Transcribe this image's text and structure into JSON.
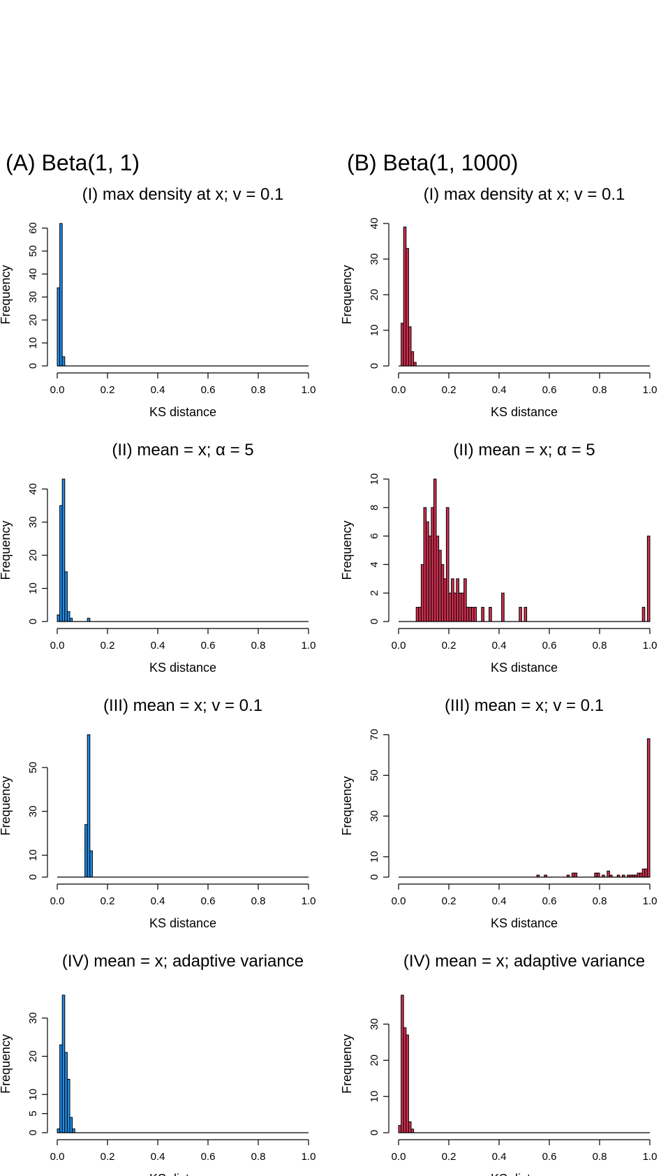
{
  "columns": [
    {
      "id": "A",
      "title": "(A) Beta(1, 1)"
    },
    {
      "id": "B",
      "title": "(B) Beta(1, 1000)"
    }
  ],
  "colors": {
    "A": "#1f8ce6",
    "B": "#d03050",
    "edge": "#000000"
  },
  "chart_data": [
    {
      "column": "A",
      "type": "bar",
      "title": "(I) max density at x; v = 0.1",
      "xlabel": "KS distance",
      "ylabel": "Frequency",
      "xlim": [
        0,
        1
      ],
      "ylim": [
        0,
        62
      ],
      "bin_width": 0.01,
      "x_ticks": [
        "0.0",
        "0.2",
        "0.4",
        "0.6",
        "0.8",
        "1.0"
      ],
      "y_ticks": [
        0,
        10,
        20,
        30,
        40,
        50,
        60
      ],
      "bins": [
        [
          0.0,
          34
        ],
        [
          0.01,
          62
        ],
        [
          0.02,
          4
        ]
      ]
    },
    {
      "column": "B",
      "type": "bar",
      "title": "(I) max density at x; v = 0.1",
      "xlabel": "KS distance",
      "ylabel": "Frequency",
      "xlim": [
        0,
        1
      ],
      "ylim": [
        0,
        40
      ],
      "bin_width": 0.01,
      "x_ticks": [
        "0.0",
        "0.2",
        "0.4",
        "0.6",
        "0.8",
        "1.0"
      ],
      "y_ticks": [
        0,
        10,
        20,
        30,
        40
      ],
      "bins": [
        [
          0.01,
          12
        ],
        [
          0.02,
          39
        ],
        [
          0.03,
          33
        ],
        [
          0.04,
          11
        ],
        [
          0.05,
          4
        ],
        [
          0.06,
          1
        ]
      ]
    },
    {
      "column": "A",
      "type": "bar",
      "title": "(II) mean = x; α = 5",
      "xlabel": "KS distance",
      "ylabel": "Frequency",
      "xlim": [
        0,
        1
      ],
      "ylim": [
        0,
        43
      ],
      "bin_width": 0.01,
      "x_ticks": [
        "0.0",
        "0.2",
        "0.4",
        "0.6",
        "0.8",
        "1.0"
      ],
      "y_ticks": [
        0,
        10,
        20,
        30,
        40
      ],
      "bins": [
        [
          0.0,
          2
        ],
        [
          0.01,
          35
        ],
        [
          0.02,
          43
        ],
        [
          0.03,
          15
        ],
        [
          0.04,
          3
        ],
        [
          0.05,
          1
        ],
        [
          0.12,
          1
        ]
      ]
    },
    {
      "column": "B",
      "type": "bar",
      "title": "(II) mean = x; α = 5",
      "xlabel": "KS distance",
      "ylabel": "Frequency",
      "xlim": [
        0,
        1
      ],
      "ylim": [
        0,
        10
      ],
      "bin_width": 0.01,
      "x_ticks": [
        "0.0",
        "0.2",
        "0.4",
        "0.6",
        "0.8",
        "1.0"
      ],
      "y_ticks": [
        0,
        2,
        4,
        6,
        8,
        10
      ],
      "bins": [
        [
          0.07,
          1
        ],
        [
          0.08,
          1
        ],
        [
          0.09,
          4
        ],
        [
          0.1,
          8
        ],
        [
          0.11,
          7
        ],
        [
          0.12,
          6
        ],
        [
          0.13,
          8
        ],
        [
          0.14,
          10
        ],
        [
          0.15,
          6
        ],
        [
          0.16,
          5
        ],
        [
          0.17,
          4
        ],
        [
          0.18,
          3
        ],
        [
          0.19,
          8
        ],
        [
          0.2,
          2
        ],
        [
          0.21,
          3
        ],
        [
          0.22,
          2
        ],
        [
          0.23,
          3
        ],
        [
          0.24,
          2
        ],
        [
          0.25,
          2
        ],
        [
          0.26,
          3
        ],
        [
          0.27,
          1
        ],
        [
          0.28,
          1
        ],
        [
          0.29,
          1
        ],
        [
          0.3,
          1
        ],
        [
          0.33,
          1
        ],
        [
          0.36,
          1
        ],
        [
          0.41,
          2
        ],
        [
          0.48,
          1
        ],
        [
          0.5,
          1
        ],
        [
          0.97,
          1
        ],
        [
          0.99,
          6
        ]
      ]
    },
    {
      "column": "A",
      "type": "bar",
      "title": "(III) mean = x; v = 0.1",
      "xlabel": "KS distance",
      "ylabel": "Frequency",
      "xlim": [
        0,
        1
      ],
      "ylim": [
        0,
        65
      ],
      "bin_width": 0.01,
      "x_ticks": [
        "0.0",
        "0.2",
        "0.4",
        "0.6",
        "0.8",
        "1.0"
      ],
      "y_ticks": [
        0,
        10,
        30,
        50
      ],
      "bins": [
        [
          0.11,
          24
        ],
        [
          0.12,
          65
        ],
        [
          0.13,
          12
        ]
      ]
    },
    {
      "column": "B",
      "type": "bar",
      "title": "(III) mean = x; v = 0.1",
      "xlabel": "KS distance",
      "ylabel": "Frequency",
      "xlim": [
        0,
        1
      ],
      "ylim": [
        0,
        70
      ],
      "bin_width": 0.01,
      "x_ticks": [
        "0.0",
        "0.2",
        "0.4",
        "0.6",
        "0.8",
        "1.0"
      ],
      "y_ticks": [
        0,
        10,
        30,
        50,
        70
      ],
      "bins": [
        [
          0.55,
          1
        ],
        [
          0.58,
          1
        ],
        [
          0.67,
          1
        ],
        [
          0.69,
          2
        ],
        [
          0.7,
          2
        ],
        [
          0.78,
          2
        ],
        [
          0.79,
          2
        ],
        [
          0.81,
          1
        ],
        [
          0.83,
          3
        ],
        [
          0.84,
          1
        ],
        [
          0.87,
          1
        ],
        [
          0.89,
          1
        ],
        [
          0.91,
          1
        ],
        [
          0.92,
          1
        ],
        [
          0.93,
          1
        ],
        [
          0.94,
          1
        ],
        [
          0.95,
          2
        ],
        [
          0.96,
          2
        ],
        [
          0.97,
          4
        ],
        [
          0.98,
          4
        ],
        [
          0.99,
          68
        ]
      ]
    },
    {
      "column": "A",
      "type": "bar",
      "title": "(IV) mean = x; adaptive variance",
      "xlabel": "KS distance",
      "ylabel": "Frequency",
      "xlim": [
        0,
        1
      ],
      "ylim": [
        0,
        36
      ],
      "bin_width": 0.01,
      "x_ticks": [
        "0.0",
        "0.2",
        "0.4",
        "0.6",
        "0.8",
        "1.0"
      ],
      "y_ticks": [
        0,
        5,
        10,
        20,
        30
      ],
      "bins": [
        [
          0.0,
          1
        ],
        [
          0.01,
          23
        ],
        [
          0.02,
          36
        ],
        [
          0.03,
          21
        ],
        [
          0.04,
          14
        ],
        [
          0.05,
          4
        ],
        [
          0.06,
          1
        ]
      ]
    },
    {
      "column": "B",
      "type": "bar",
      "title": "(IV) mean = x; adaptive variance",
      "xlabel": "KS distance",
      "ylabel": "Frequency",
      "xlim": [
        0,
        1
      ],
      "ylim": [
        0,
        38
      ],
      "bin_width": 0.01,
      "x_ticks": [
        "0.0",
        "0.2",
        "0.4",
        "0.6",
        "0.8",
        "1.0"
      ],
      "y_ticks": [
        0,
        10,
        20,
        30
      ],
      "bins": [
        [
          0.0,
          2
        ],
        [
          0.01,
          38
        ],
        [
          0.02,
          29
        ],
        [
          0.03,
          27
        ],
        [
          0.04,
          3
        ],
        [
          0.05,
          1
        ]
      ]
    }
  ]
}
